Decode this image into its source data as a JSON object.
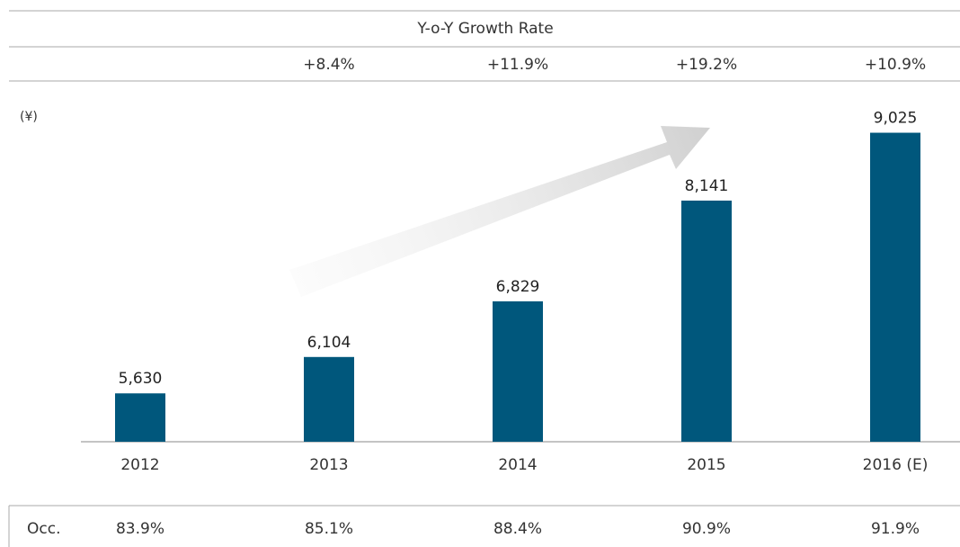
{
  "chart_data": {
    "type": "bar",
    "y_label": "(¥)",
    "categories": [
      "2012",
      "2013",
      "2014",
      "2015",
      "2016 (E)"
    ],
    "values": [
      5630,
      6104,
      6829,
      8141,
      9025
    ],
    "value_labels": [
      "5,630",
      "6,104",
      "6,829",
      "8,141",
      "9,025"
    ],
    "color": "#00577c",
    "ylim": [
      5000,
      9500
    ],
    "growth_rate": {
      "title": "Y-o-Y Growth Rate",
      "labels": [
        "+8.4%",
        "+11.9%",
        "+19.2%",
        "+10.9%"
      ]
    },
    "occupancy": {
      "title": "Occ.",
      "labels": [
        "83.9%",
        "85.1%",
        "88.4%",
        "90.9%",
        "91.9%"
      ]
    }
  }
}
